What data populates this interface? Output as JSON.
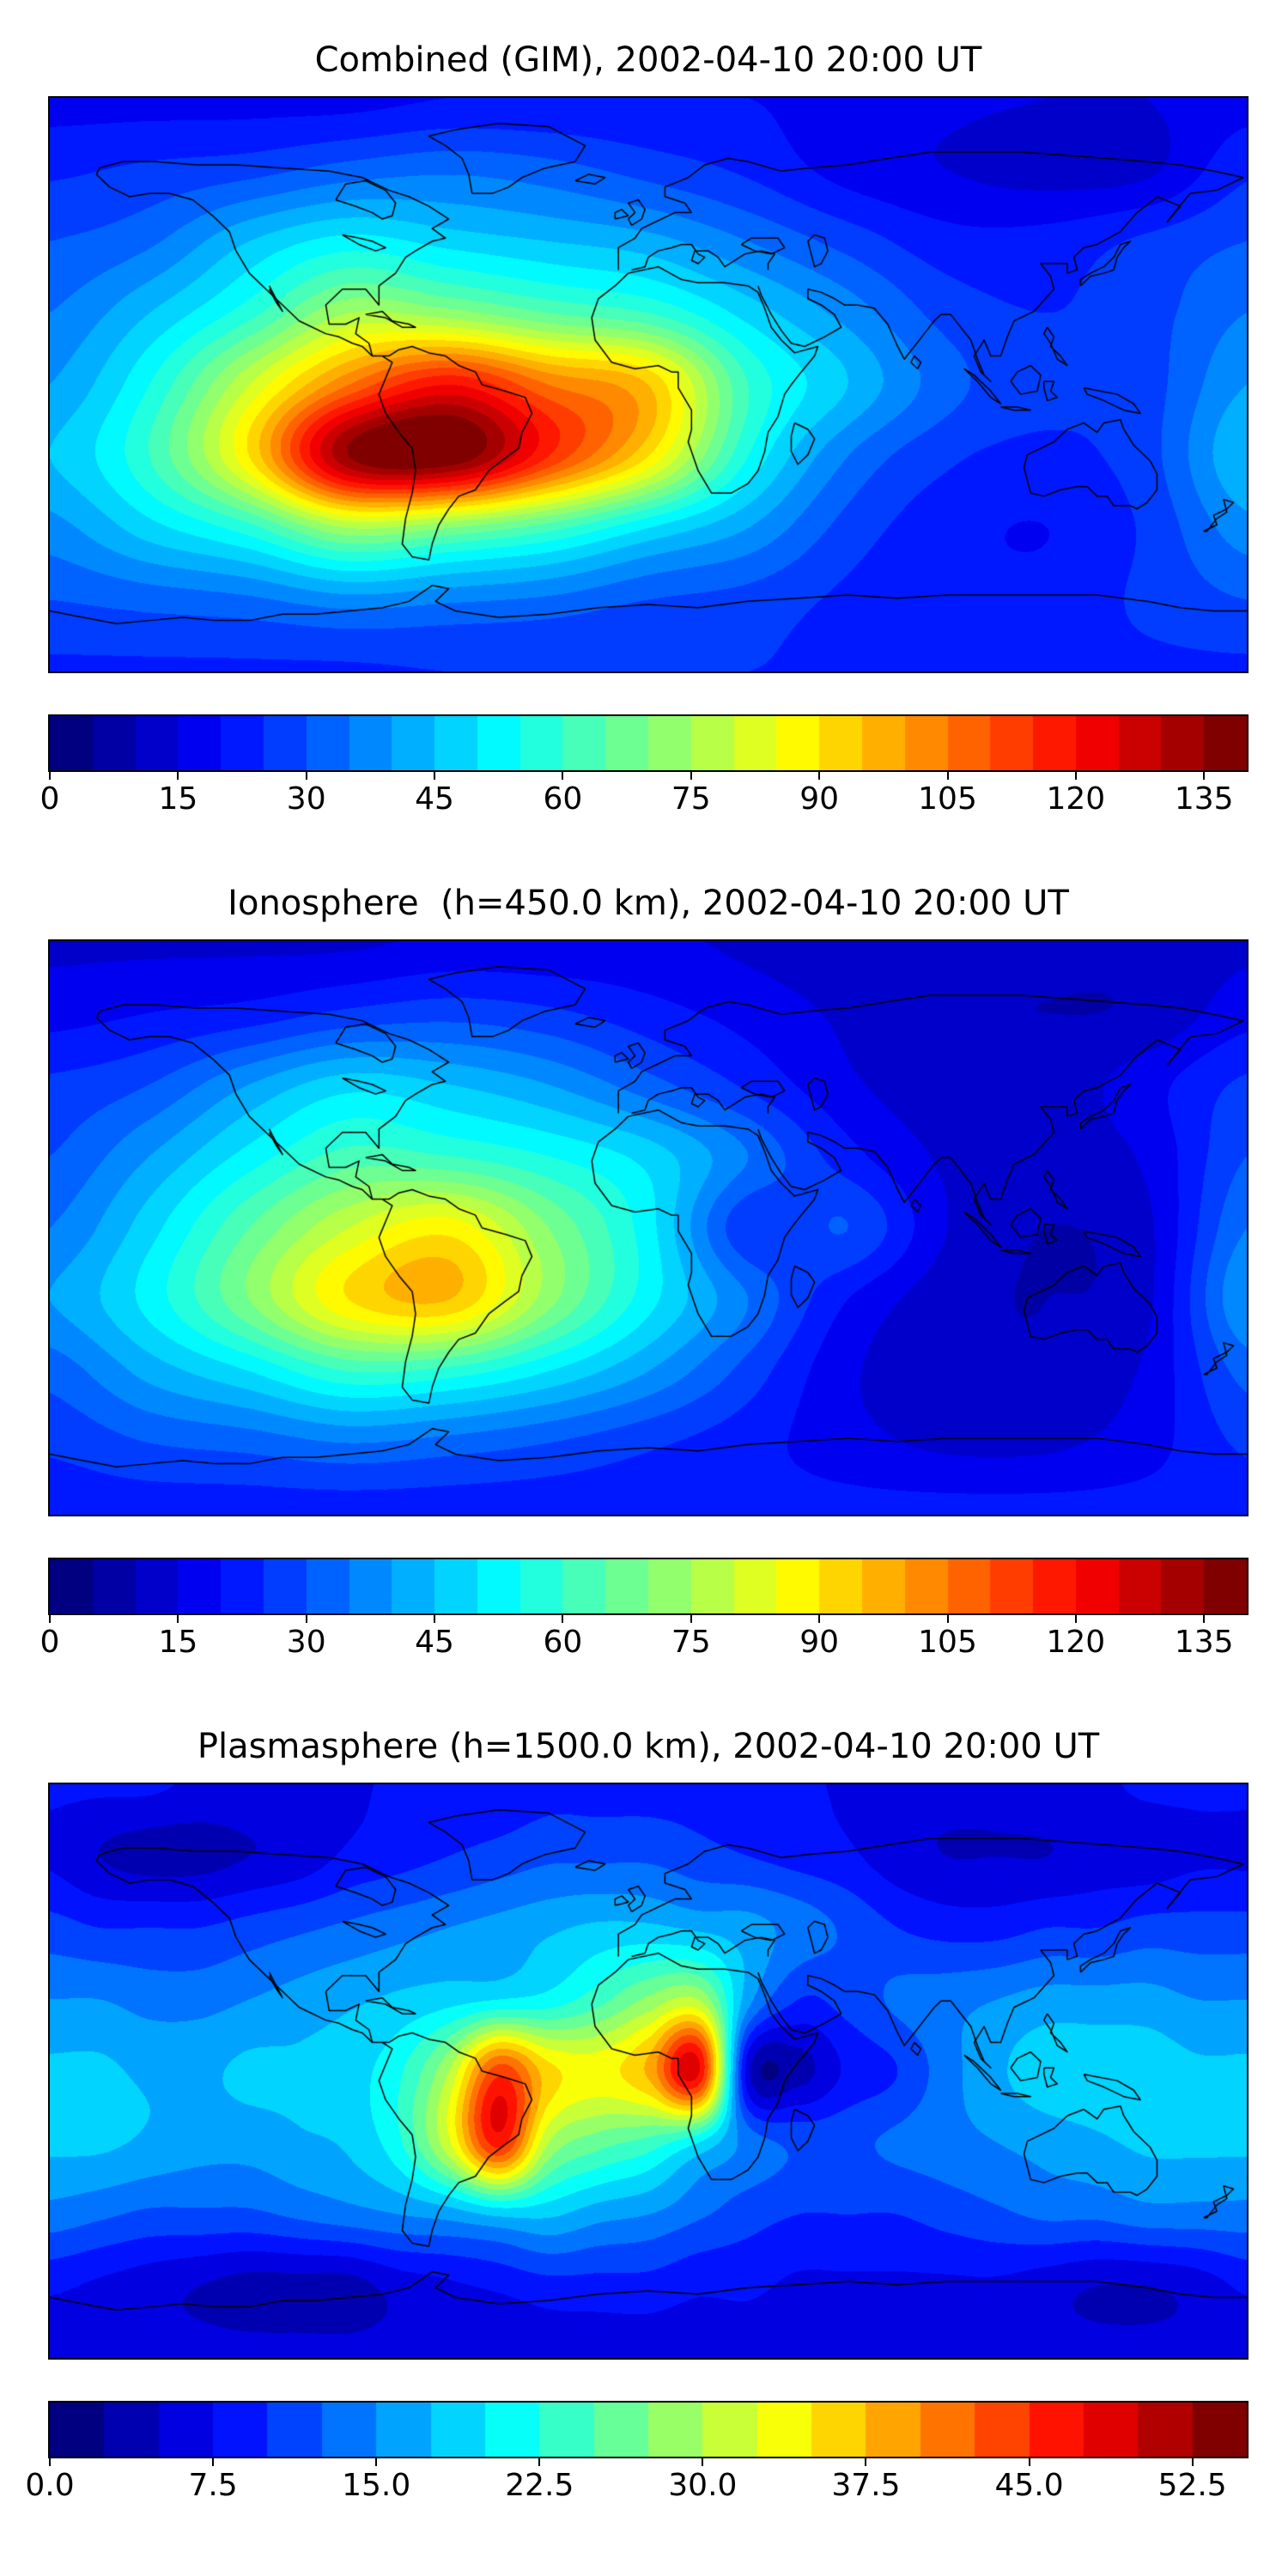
{
  "figure": {
    "background_color": "#ffffff",
    "text_color": "#000000",
    "colormap": "jet"
  },
  "chart_data": [
    {
      "type": "heatmap",
      "title": "Combined (GIM), 2002-04-10 20:00 UT",
      "overlay": "world-coastlines",
      "projection": "equirectangular",
      "xlabel": "",
      "ylabel": "",
      "x_lon_deg": [
        -180,
        -150,
        -120,
        -90,
        -60,
        -30,
        0,
        30,
        60,
        90,
        120,
        150,
        180
      ],
      "y_lat_deg": [
        90,
        67.5,
        45,
        22.5,
        0,
        -22.5,
        -45,
        -67.5,
        -90
      ],
      "values": [
        [
          18,
          18,
          18,
          18,
          20,
          20,
          20,
          20,
          18,
          16,
          15,
          15,
          18
        ],
        [
          24,
          26,
          28,
          32,
          34,
          32,
          28,
          24,
          18,
          15,
          13,
          14,
          24
        ],
        [
          30,
          34,
          45,
          52,
          48,
          45,
          42,
          35,
          28,
          22,
          22,
          26,
          30
        ],
        [
          35,
          45,
          58,
          75,
          72,
          65,
          60,
          48,
          38,
          28,
          25,
          28,
          35
        ],
        [
          40,
          55,
          80,
          105,
          120,
          105,
          95,
          60,
          45,
          32,
          26,
          28,
          40
        ],
        [
          45,
          60,
          90,
          135,
          140,
          115,
          90,
          55,
          35,
          26,
          24,
          28,
          45
        ],
        [
          38,
          48,
          58,
          75,
          70,
          62,
          50,
          40,
          28,
          22,
          20,
          26,
          38
        ],
        [
          30,
          32,
          34,
          38,
          36,
          34,
          30,
          28,
          24,
          22,
          22,
          26,
          30
        ],
        [
          24,
          24,
          24,
          24,
          25,
          25,
          25,
          25,
          24,
          24,
          24,
          24,
          24
        ]
      ],
      "vmin": 0,
      "vmax": 140,
      "contour_step": 5,
      "colorbar_ticks": [
        0,
        15,
        30,
        45,
        60,
        75,
        90,
        105,
        120,
        135
      ],
      "colorbar_tick_labels": [
        "0",
        "15",
        "30",
        "45",
        "60",
        "75",
        "90",
        "105",
        "120",
        "135"
      ]
    },
    {
      "type": "heatmap",
      "title": "Ionosphere  (h=450.0 km), 2002-04-10 20:00 UT",
      "overlay": "world-coastlines",
      "projection": "equirectangular",
      "xlabel": "",
      "ylabel": "",
      "x_lon_deg": [
        -180,
        -150,
        -120,
        -90,
        -60,
        -30,
        0,
        30,
        60,
        90,
        120,
        150,
        180
      ],
      "y_lat_deg": [
        90,
        67.5,
        45,
        22.5,
        0,
        -22.5,
        -45,
        -67.5,
        -90
      ],
      "values": [
        [
          14,
          14,
          14,
          14,
          16,
          16,
          16,
          14,
          12,
          11,
          11,
          12,
          14
        ],
        [
          18,
          20,
          22,
          26,
          28,
          26,
          22,
          18,
          14,
          11,
          10,
          11,
          18
        ],
        [
          26,
          30,
          40,
          48,
          45,
          40,
          32,
          24,
          16,
          12,
          12,
          18,
          26
        ],
        [
          30,
          40,
          52,
          62,
          60,
          55,
          48,
          35,
          22,
          14,
          12,
          16,
          30
        ],
        [
          35,
          48,
          65,
          80,
          88,
          70,
          52,
          26,
          30,
          15,
          10,
          14,
          35
        ],
        [
          40,
          52,
          70,
          90,
          95,
          72,
          52,
          35,
          20,
          12,
          10,
          14,
          40
        ],
        [
          32,
          42,
          50,
          60,
          58,
          50,
          40,
          28,
          16,
          12,
          11,
          16,
          32
        ],
        [
          26,
          30,
          32,
          35,
          33,
          30,
          26,
          22,
          17,
          14,
          14,
          18,
          26
        ],
        [
          22,
          22,
          22,
          22,
          22,
          22,
          22,
          22,
          22,
          22,
          22,
          22,
          22
        ]
      ],
      "vmin": 0,
      "vmax": 140,
      "contour_step": 5,
      "colorbar_ticks": [
        0,
        15,
        30,
        45,
        60,
        75,
        90,
        105,
        120,
        135
      ],
      "colorbar_tick_labels": [
        "0",
        "15",
        "30",
        "45",
        "60",
        "75",
        "90",
        "105",
        "120",
        "135"
      ]
    },
    {
      "type": "heatmap",
      "title": "Plasmasphere (h=1500.0 km), 2002-04-10 20:00 UT",
      "overlay": "world-coastlines",
      "projection": "equirectangular",
      "xlabel": "",
      "ylabel": "",
      "x_lon_deg": [
        -180,
        -165,
        -150,
        -135,
        -120,
        -105,
        -90,
        -75,
        -60,
        -45,
        -30,
        -15,
        0,
        15,
        30,
        45,
        60,
        75,
        90,
        105,
        120,
        135,
        150,
        165,
        180
      ],
      "y_lat_deg": [
        90,
        67.5,
        45,
        22.5,
        0,
        -22.5,
        -45,
        -67.5,
        -90
      ],
      "values": [
        [
          8,
          8,
          8,
          7,
          7,
          7,
          7,
          8,
          8,
          8,
          9,
          9,
          9,
          9,
          8,
          8,
          7,
          6,
          6,
          6,
          7,
          7,
          8,
          8,
          8
        ],
        [
          7,
          5,
          4,
          4,
          5,
          6,
          8,
          9,
          10,
          11,
          12,
          12,
          12,
          11,
          10,
          9,
          8,
          6,
          5,
          5,
          5,
          6,
          6,
          7,
          7
        ],
        [
          11,
          10,
          10,
          10,
          11,
          12,
          13,
          14,
          15,
          16,
          17,
          18,
          18,
          17,
          16,
          14,
          12,
          10,
          9,
          9,
          10,
          10,
          11,
          11,
          11
        ],
        [
          15,
          15,
          14,
          14,
          15,
          16,
          17,
          18,
          19,
          20,
          21,
          24,
          28,
          30,
          16,
          10,
          11,
          13,
          14,
          15,
          16,
          16,
          16,
          15,
          15
        ],
        [
          18,
          18,
          17,
          17,
          18,
          18,
          19,
          22,
          30,
          44,
          36,
          34,
          38,
          48,
          6,
          4,
          8,
          10,
          14,
          17,
          19,
          19,
          19,
          18,
          18
        ],
        [
          18,
          18,
          17,
          16,
          16,
          17,
          18,
          22,
          32,
          46,
          30,
          26,
          24,
          20,
          14,
          12,
          12,
          13,
          14,
          15,
          16,
          17,
          18,
          18,
          18
        ],
        [
          14,
          13,
          12,
          12,
          12,
          13,
          14,
          15,
          16,
          18,
          18,
          16,
          15,
          13,
          11,
          10,
          10,
          10,
          11,
          12,
          13,
          13,
          14,
          14,
          14
        ],
        [
          8,
          7,
          6,
          5,
          4,
          4,
          4,
          6,
          7,
          8,
          9,
          9,
          9,
          8,
          8,
          7,
          7,
          7,
          7,
          7,
          6,
          5,
          5,
          6,
          8
        ],
        [
          6,
          6,
          6,
          6,
          6,
          6,
          6,
          6,
          6,
          6,
          6,
          6,
          6,
          6,
          6,
          6,
          6,
          6,
          6,
          6,
          6,
          6,
          6,
          6,
          6
        ]
      ],
      "vmin": 0,
      "vmax": 55,
      "contour_step": 2.5,
      "colorbar_ticks": [
        0,
        7.5,
        15,
        22.5,
        30,
        37.5,
        45,
        52.5
      ],
      "colorbar_tick_labels": [
        "0.0",
        "7.5",
        "15.0",
        "22.5",
        "30.0",
        "37.5",
        "45.0",
        "52.5"
      ]
    }
  ]
}
